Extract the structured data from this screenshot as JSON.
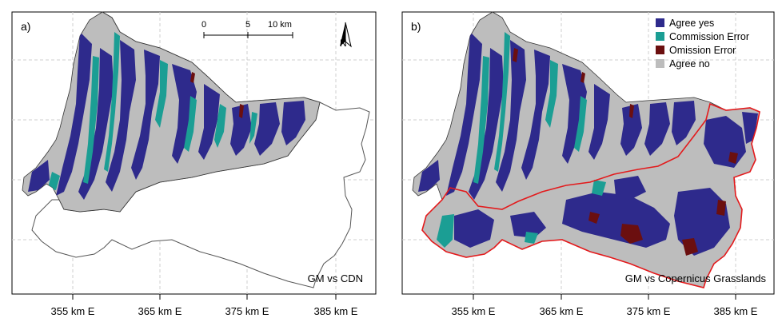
{
  "panels": [
    {
      "label": "a)",
      "caption": "GM vs CDN",
      "x_ticks": [
        "355 km E",
        "365 km E",
        "375 km E",
        "385 km E"
      ],
      "scalebar": {
        "ticks": [
          "0",
          "5",
          "10 km"
        ]
      },
      "north_arrow": "N"
    },
    {
      "label": "b)",
      "caption": "GM vs Copernicus Grasslands",
      "x_ticks": [
        "355 km E",
        "365 km E",
        "375 km E",
        "385 km E"
      ],
      "legend": [
        {
          "label": "Agree yes",
          "color": "#2e2a8c"
        },
        {
          "label": "Commission Error",
          "color": "#1b9e94"
        },
        {
          "label": "Omission Error",
          "color": "#6b0f0f"
        },
        {
          "label": "Agree no",
          "color": "#bdbdbd"
        }
      ]
    }
  ],
  "colors": {
    "agree_yes": "#2e2a8c",
    "commission_error": "#1b9e94",
    "omission_error": "#6b0f0f",
    "agree_no": "#bdbdbd",
    "region_outline": "#e31a1c",
    "grid": "#cfcfcf"
  }
}
